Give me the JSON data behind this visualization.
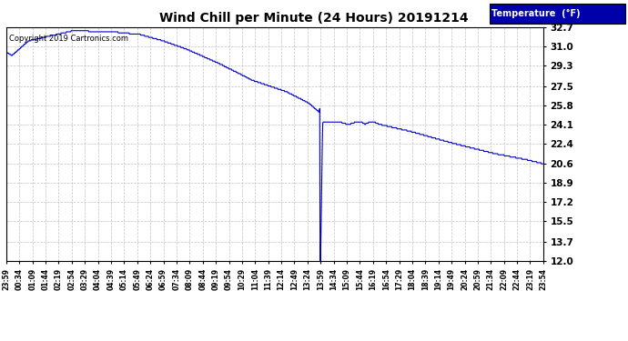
{
  "title": "Wind Chill per Minute (24 Hours) 20191214",
  "copyright_text": "Copyright 2019 Cartronics.com",
  "legend_label": "Temperature  (°F)",
  "line_color": "#0000cc",
  "bg_color": "#ffffff",
  "plot_bg_color": "#ffffff",
  "grid_color": "#bbbbbb",
  "yticks": [
    12.0,
    13.7,
    15.5,
    17.2,
    18.9,
    20.6,
    22.4,
    24.1,
    25.8,
    27.5,
    29.3,
    31.0,
    32.7
  ],
  "ylim": [
    12.0,
    32.7
  ],
  "xtick_labels": [
    "23:59",
    "00:34",
    "01:09",
    "01:44",
    "02:19",
    "02:54",
    "03:29",
    "04:04",
    "04:39",
    "05:14",
    "05:49",
    "06:24",
    "06:59",
    "07:34",
    "08:09",
    "08:44",
    "09:19",
    "09:54",
    "10:29",
    "11:04",
    "11:39",
    "12:14",
    "12:49",
    "13:24",
    "13:59",
    "14:34",
    "15:09",
    "15:44",
    "16:19",
    "16:54",
    "17:29",
    "18:04",
    "18:39",
    "19:14",
    "19:49",
    "20:24",
    "20:59",
    "21:34",
    "22:09",
    "22:44",
    "23:19",
    "23:54"
  ],
  "legend_box_color": "#0000aa",
  "legend_text_color": "#ffffff"
}
